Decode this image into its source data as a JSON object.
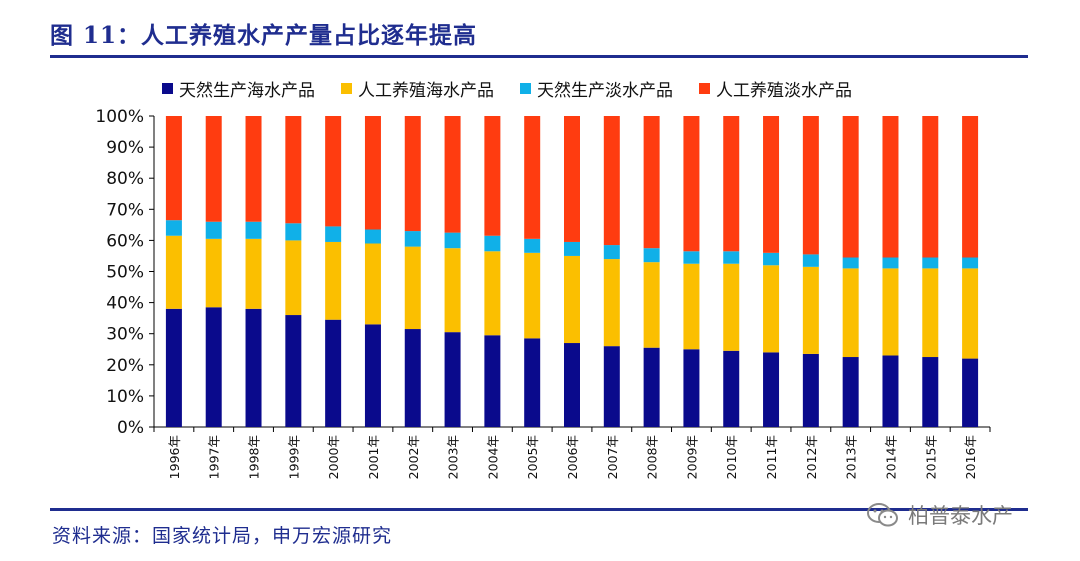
{
  "header": {
    "title": "图 11：人工养殖水产产量占比逐年提高"
  },
  "footer": {
    "source": "资料来源：国家统计局，申万宏源研究"
  },
  "watermark": {
    "text": "柏普泰水产",
    "icon": "wechat-icon"
  },
  "colors": {
    "series": [
      "#0a0a8c",
      "#fbbf00",
      "#10b0e8",
      "#ff3c10"
    ],
    "title": "#1f2d8f"
  },
  "chart_data": {
    "type": "bar",
    "stacked": true,
    "categories": [
      "1996年",
      "1997年",
      "1998年",
      "1999年",
      "2000年",
      "2001年",
      "2002年",
      "2003年",
      "2004年",
      "2005年",
      "2006年",
      "2007年",
      "2008年",
      "2009年",
      "2010年",
      "2011年",
      "2012年",
      "2013年",
      "2014年",
      "2015年",
      "2016年"
    ],
    "series": [
      {
        "name": "天然生产海水产品",
        "values": [
          38,
          38.5,
          38,
          36,
          34.5,
          33,
          31.5,
          30.5,
          29.5,
          28.5,
          27,
          26,
          25.5,
          25,
          24.5,
          24,
          23.5,
          22.5,
          23,
          22.5,
          22
        ]
      },
      {
        "name": "人工养殖海水产品",
        "values": [
          23.5,
          22,
          22.5,
          24,
          25,
          26,
          26.5,
          27,
          27,
          27.5,
          28,
          28,
          27.5,
          27.5,
          28,
          28,
          28,
          28.5,
          28,
          28.5,
          29
        ]
      },
      {
        "name": "天然生产淡水产品",
        "values": [
          5,
          5.5,
          5.5,
          5.5,
          5,
          4.5,
          5,
          5,
          5,
          4.5,
          4.5,
          4.5,
          4.5,
          4,
          4,
          4,
          4,
          3.5,
          3.5,
          3.5,
          3.5
        ]
      },
      {
        "name": "人工养殖淡水产品",
        "values": [
          33.5,
          34,
          34,
          34.5,
          35.5,
          36.5,
          37,
          37.5,
          38.5,
          39.5,
          40.5,
          41.5,
          42.5,
          43.5,
          43.5,
          44,
          44.5,
          45.5,
          45.5,
          45.5,
          45.5
        ]
      }
    ],
    "yticks": [
      "0%",
      "10%",
      "20%",
      "30%",
      "40%",
      "50%",
      "60%",
      "70%",
      "80%",
      "90%",
      "100%"
    ],
    "ylim": [
      0,
      100
    ],
    "grid": false,
    "legend": "top"
  }
}
